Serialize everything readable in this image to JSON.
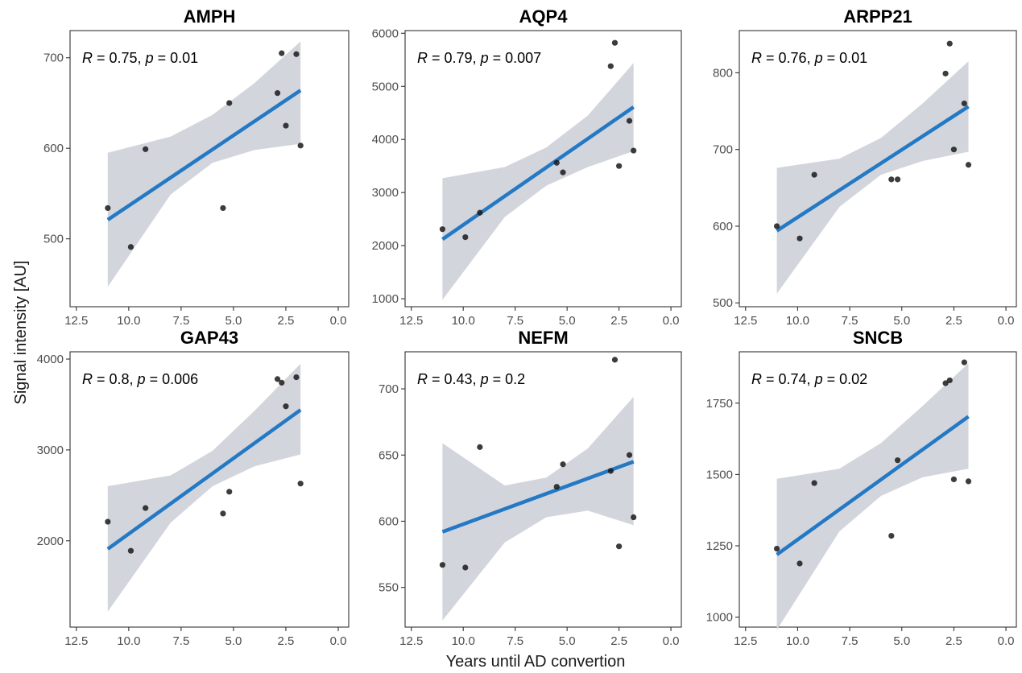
{
  "chart_data": {
    "type": "scatter",
    "ylabel": "Signal intensity [AU]",
    "xlabel": "Years until AD convertion",
    "colors": {
      "fit_line": "#2479c4",
      "confidence_band": "#d3d5dd",
      "points": "#1a1a1a"
    },
    "grid": false,
    "x_reversed": true,
    "panels": [
      {
        "title": "AMPH",
        "annotation": {
          "R_label": "R",
          "R_value": " = 0.75, ",
          "p_label": "p",
          "p_value": " = 0.01"
        },
        "xlim": [
          12.8,
          -0.5
        ],
        "ylim": [
          425,
          730
        ],
        "x_ticks": [
          12.5,
          10.0,
          7.5,
          5.0,
          2.5,
          0.0
        ],
        "x_tick_labels": [
          "12.5",
          "10.0",
          "7.5",
          "5.0",
          "2.5",
          "0.0"
        ],
        "y_ticks": [
          500,
          600,
          700
        ],
        "y_tick_labels": [
          "500",
          "600",
          "700"
        ],
        "points": [
          [
            11.0,
            534
          ],
          [
            9.9,
            491
          ],
          [
            9.2,
            599
          ],
          [
            5.5,
            534
          ],
          [
            5.2,
            650
          ],
          [
            2.9,
            661
          ],
          [
            2.7,
            705
          ],
          [
            2.5,
            625
          ],
          [
            2.0,
            704
          ],
          [
            1.8,
            603
          ]
        ],
        "fit": {
          "x": [
            11.0,
            1.8
          ],
          "y": [
            521,
            664
          ]
        },
        "band": {
          "x": [
            11.0,
            8.0,
            6.0,
            4.0,
            1.8
          ],
          "lower": [
            447,
            549,
            584,
            598,
            605
          ],
          "upper": [
            595,
            613,
            637,
            672,
            718
          ]
        }
      },
      {
        "title": "AQP4",
        "annotation": {
          "R_label": "R",
          "R_value": " = 0.79, ",
          "p_label": "p",
          "p_value": " = 0.007"
        },
        "xlim": [
          12.8,
          -0.5
        ],
        "ylim": [
          850,
          6050
        ],
        "x_ticks": [
          12.5,
          10.0,
          7.5,
          5.0,
          2.5,
          0.0
        ],
        "x_tick_labels": [
          "12.5",
          "10.0",
          "7.5",
          "5.0",
          "2.5",
          "0.0"
        ],
        "y_ticks": [
          1000,
          2000,
          3000,
          4000,
          5000,
          6000
        ],
        "y_tick_labels": [
          "1000",
          "2000",
          "3000",
          "4000",
          "5000",
          "6000"
        ],
        "points": [
          [
            11.0,
            2310
          ],
          [
            9.9,
            2160
          ],
          [
            9.2,
            2620
          ],
          [
            5.5,
            3560
          ],
          [
            5.2,
            3380
          ],
          [
            2.9,
            5380
          ],
          [
            2.7,
            5820
          ],
          [
            2.5,
            3500
          ],
          [
            2.0,
            4350
          ],
          [
            1.8,
            3790
          ]
        ],
        "fit": {
          "x": [
            11.0,
            1.8
          ],
          "y": [
            2120,
            4610
          ]
        },
        "band": {
          "x": [
            11.0,
            8.0,
            6.0,
            4.0,
            1.8
          ],
          "lower": [
            980,
            2540,
            3130,
            3480,
            3780
          ],
          "upper": [
            3270,
            3480,
            3850,
            4450,
            5440
          ]
        }
      },
      {
        "title": "ARPP21",
        "annotation": {
          "R_label": "R",
          "R_value": " = 0.76, ",
          "p_label": "p",
          "p_value": " = 0.01"
        },
        "xlim": [
          12.8,
          -0.5
        ],
        "ylim": [
          495,
          855
        ],
        "x_ticks": [
          12.5,
          10.0,
          7.5,
          5.0,
          2.5,
          0.0
        ],
        "x_tick_labels": [
          "12.5",
          "10.0",
          "7.5",
          "5.0",
          "2.5",
          "0.0"
        ],
        "y_ticks": [
          500,
          600,
          700,
          800
        ],
        "y_tick_labels": [
          "500",
          "600",
          "700",
          "800"
        ],
        "points": [
          [
            11.0,
            600
          ],
          [
            9.9,
            584
          ],
          [
            9.2,
            667
          ],
          [
            5.5,
            661
          ],
          [
            5.2,
            661
          ],
          [
            2.9,
            799
          ],
          [
            2.7,
            838
          ],
          [
            2.5,
            700
          ],
          [
            2.0,
            760
          ],
          [
            1.8,
            680
          ]
        ],
        "fit": {
          "x": [
            11.0,
            1.8
          ],
          "y": [
            594,
            756
          ]
        },
        "band": {
          "x": [
            11.0,
            8.0,
            6.0,
            4.0,
            1.8
          ],
          "lower": [
            512,
            625,
            667,
            685,
            697
          ],
          "upper": [
            676,
            688,
            715,
            760,
            815
          ]
        }
      },
      {
        "title": "GAP43",
        "annotation": {
          "R_label": "R",
          "R_value": " = 0.8, ",
          "p_label": "p",
          "p_value": " = 0.006"
        },
        "xlim": [
          12.8,
          -0.5
        ],
        "ylim": [
          1050,
          4080
        ],
        "x_ticks": [
          12.5,
          10.0,
          7.5,
          5.0,
          2.5,
          0.0
        ],
        "x_tick_labels": [
          "12.5",
          "10.0",
          "7.5",
          "5.0",
          "2.5",
          "0.0"
        ],
        "y_ticks": [
          2000,
          3000,
          4000
        ],
        "y_tick_labels": [
          "2000",
          "3000",
          "4000"
        ],
        "points": [
          [
            11.0,
            2210
          ],
          [
            9.9,
            1890
          ],
          [
            9.2,
            2360
          ],
          [
            5.5,
            2300
          ],
          [
            5.2,
            2540
          ],
          [
            2.9,
            3780
          ],
          [
            2.7,
            3740
          ],
          [
            2.5,
            3480
          ],
          [
            2.0,
            3800
          ],
          [
            1.8,
            2630
          ]
        ],
        "fit": {
          "x": [
            11.0,
            1.8
          ],
          "y": [
            1910,
            3440
          ]
        },
        "band": {
          "x": [
            11.0,
            8.0,
            6.0,
            4.0,
            1.8
          ],
          "lower": [
            1220,
            2200,
            2600,
            2820,
            2950
          ],
          "upper": [
            2600,
            2720,
            2990,
            3430,
            3950
          ]
        }
      },
      {
        "title": "NEFM",
        "annotation": {
          "R_label": "R",
          "R_value": " = 0.43, ",
          "p_label": "p",
          "p_value": " = 0.2"
        },
        "xlim": [
          12.8,
          -0.5
        ],
        "ylim": [
          520,
          728
        ],
        "x_ticks": [
          12.5,
          10.0,
          7.5,
          5.0,
          2.5,
          0.0
        ],
        "x_tick_labels": [
          "12.5",
          "10.0",
          "7.5",
          "5.0",
          "2.5",
          "0.0"
        ],
        "y_ticks": [
          550,
          600,
          650,
          700
        ],
        "y_tick_labels": [
          "550",
          "600",
          "650",
          "700"
        ],
        "points": [
          [
            11.0,
            567
          ],
          [
            9.9,
            565
          ],
          [
            9.2,
            656
          ],
          [
            5.5,
            626
          ],
          [
            5.2,
            643
          ],
          [
            2.9,
            638
          ],
          [
            2.7,
            722
          ],
          [
            2.5,
            581
          ],
          [
            2.0,
            650
          ],
          [
            1.8,
            603
          ]
        ],
        "fit": {
          "x": [
            11.0,
            1.8
          ],
          "y": [
            592,
            645
          ]
        },
        "band": {
          "x": [
            11.0,
            8.0,
            6.0,
            4.0,
            1.8
          ],
          "lower": [
            525,
            584,
            603,
            608,
            597
          ],
          "upper": [
            659,
            627,
            633,
            655,
            694
          ]
        }
      },
      {
        "title": "SNCB",
        "annotation": {
          "R_label": "R",
          "R_value": " = 0.74, ",
          "p_label": "p",
          "p_value": " = 0.02"
        },
        "xlim": [
          12.8,
          -0.5
        ],
        "ylim": [
          965,
          1930
        ],
        "x_ticks": [
          12.5,
          10.0,
          7.5,
          5.0,
          2.5,
          0.0
        ],
        "x_tick_labels": [
          "12.5",
          "10.0",
          "7.5",
          "5.0",
          "2.5",
          "0.0"
        ],
        "y_ticks": [
          1000,
          1250,
          1500,
          1750
        ],
        "y_tick_labels": [
          "1000",
          "1250",
          "1500",
          "1750"
        ],
        "points": [
          [
            11.0,
            1240
          ],
          [
            9.9,
            1188
          ],
          [
            9.2,
            1470
          ],
          [
            5.5,
            1285
          ],
          [
            5.2,
            1550
          ],
          [
            2.9,
            1820
          ],
          [
            2.7,
            1830
          ],
          [
            2.5,
            1483
          ],
          [
            2.0,
            1893
          ],
          [
            1.8,
            1476
          ]
        ],
        "fit": {
          "x": [
            11.0,
            1.8
          ],
          "y": [
            1219,
            1703
          ]
        },
        "band": {
          "x": [
            11.0,
            8.0,
            6.0,
            4.0,
            1.8
          ],
          "lower": [
            955,
            1300,
            1425,
            1490,
            1520
          ],
          "upper": [
            1485,
            1520,
            1610,
            1740,
            1890
          ]
        }
      }
    ]
  }
}
